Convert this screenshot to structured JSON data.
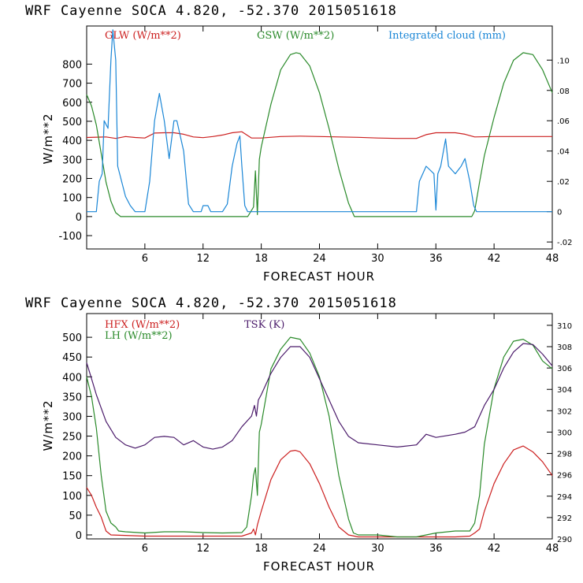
{
  "chart_data": [
    {
      "type": "line",
      "title": "WRF   Cayenne SOCA   4.820, -52.370  2015051618",
      "xlabel": "FORECAST HOUR",
      "ylabel": "W/m**2",
      "xlim": [
        0,
        48
      ],
      "ylim": [
        -170,
        1000
      ],
      "x_ticks": [
        "6",
        "12",
        "18",
        "24",
        "30",
        "36",
        "42",
        "48"
      ],
      "y_ticks": [
        "-100",
        "0",
        "100",
        "200",
        "300",
        "400",
        "500",
        "600",
        "700",
        "800"
      ],
      "y2_ticks": [
        "-.02",
        "0",
        ".02",
        ".04",
        ".06",
        ".08",
        ".10"
      ],
      "y2lim": [
        -0.0246,
        0.1225
      ],
      "series": [
        {
          "name": "GLW (W/m**2)",
          "axis": "left",
          "color": "#cc2020",
          "points": [
            [
              0,
              415
            ],
            [
              2,
              418
            ],
            [
              3,
              410
            ],
            [
              4,
              420
            ],
            [
              5,
              415
            ],
            [
              6,
              412
            ],
            [
              7,
              438
            ],
            [
              8,
              440
            ],
            [
              9,
              440
            ],
            [
              10,
              432
            ],
            [
              11,
              418
            ],
            [
              12,
              414
            ],
            [
              13,
              420
            ],
            [
              14,
              428
            ],
            [
              15,
              440
            ],
            [
              16,
              445
            ],
            [
              17,
              412
            ],
            [
              18,
              412
            ],
            [
              20,
              420
            ],
            [
              22,
              422
            ],
            [
              24,
              420
            ],
            [
              26,
              418
            ],
            [
              28,
              416
            ],
            [
              30,
              412
            ],
            [
              32,
              410
            ],
            [
              34,
              410
            ],
            [
              35,
              430
            ],
            [
              36,
              440
            ],
            [
              38,
              440
            ],
            [
              39,
              432
            ],
            [
              40,
              418
            ],
            [
              42,
              420
            ],
            [
              44,
              420
            ],
            [
              46,
              420
            ],
            [
              48,
              420
            ]
          ]
        },
        {
          "name": "GSW (W/m**2)",
          "axis": "left",
          "color": "#2a8a2a",
          "points": [
            [
              0,
              640
            ],
            [
              0.5,
              580
            ],
            [
              1,
              480
            ],
            [
              1.5,
              330
            ],
            [
              2,
              180
            ],
            [
              2.5,
              80
            ],
            [
              3,
              20
            ],
            [
              3.5,
              0
            ],
            [
              16.6,
              0
            ],
            [
              17.2,
              50
            ],
            [
              17.4,
              240
            ],
            [
              17.6,
              10
            ],
            [
              17.8,
              300
            ],
            [
              18,
              365
            ],
            [
              19,
              590
            ],
            [
              20,
              770
            ],
            [
              21,
              850
            ],
            [
              21.6,
              860
            ],
            [
              22,
              855
            ],
            [
              23,
              790
            ],
            [
              24,
              650
            ],
            [
              25,
              460
            ],
            [
              26,
              250
            ],
            [
              27,
              70
            ],
            [
              27.6,
              0
            ],
            [
              39.7,
              0
            ],
            [
              40,
              30
            ],
            [
              40.5,
              180
            ],
            [
              41,
              320
            ],
            [
              42,
              520
            ],
            [
              43,
              700
            ],
            [
              44,
              820
            ],
            [
              45,
              860
            ],
            [
              46,
              850
            ],
            [
              47,
              770
            ],
            [
              48,
              650
            ]
          ]
        },
        {
          "name": "Integrated cloud (mm)",
          "axis": "right",
          "color": "#1a86d6",
          "points": [
            [
              0,
              0
            ],
            [
              1,
              0
            ],
            [
              1.3,
              0.02
            ],
            [
              1.6,
              0.025
            ],
            [
              1.8,
              0.06
            ],
            [
              2.2,
              0.055
            ],
            [
              2.5,
              0.1
            ],
            [
              2.7,
              0.12
            ],
            [
              3,
              0.1
            ],
            [
              3.2,
              0.03
            ],
            [
              4,
              0.01
            ],
            [
              4.5,
              0.004
            ],
            [
              5,
              0
            ],
            [
              6,
              0
            ],
            [
              6.5,
              0.02
            ],
            [
              7,
              0.06
            ],
            [
              7.5,
              0.078
            ],
            [
              8,
              0.06
            ],
            [
              8.5,
              0.035
            ],
            [
              9,
              0.06
            ],
            [
              9.3,
              0.06
            ],
            [
              10,
              0.04
            ],
            [
              10.5,
              0.005
            ],
            [
              11,
              0
            ],
            [
              11.8,
              0
            ],
            [
              12,
              0.004
            ],
            [
              12.5,
              0.004
            ],
            [
              12.8,
              0
            ],
            [
              14,
              0
            ],
            [
              14.5,
              0.005
            ],
            [
              15,
              0.03
            ],
            [
              15.5,
              0.045
            ],
            [
              15.8,
              0.05
            ],
            [
              16,
              0.03
            ],
            [
              16.3,
              0.004
            ],
            [
              16.6,
              0
            ],
            [
              34,
              0
            ],
            [
              34.3,
              0.02
            ],
            [
              35,
              0.03
            ],
            [
              35.8,
              0.025
            ],
            [
              36,
              0.001
            ],
            [
              36.2,
              0.025
            ],
            [
              36.5,
              0.03
            ],
            [
              37,
              0.048
            ],
            [
              37.3,
              0.03
            ],
            [
              38,
              0.025
            ],
            [
              38.6,
              0.03
            ],
            [
              39,
              0.035
            ],
            [
              39.5,
              0.02
            ],
            [
              39.9,
              0.004
            ],
            [
              40.2,
              0
            ],
            [
              48,
              0
            ]
          ]
        }
      ]
    },
    {
      "type": "line",
      "title": "WRF   Cayenne SOCA   4.820, -52.370  2015051618",
      "xlabel": "FORECAST HOUR",
      "ylabel": "W/m**2",
      "xlim": [
        0,
        48
      ],
      "ylim": [
        -10,
        560
      ],
      "x_ticks": [
        "6",
        "12",
        "18",
        "24",
        "30",
        "36",
        "42",
        "48"
      ],
      "y_ticks": [
        "0",
        "50",
        "100",
        "150",
        "200",
        "250",
        "300",
        "350",
        "400",
        "450",
        "500"
      ],
      "y2_ticks": [
        "290",
        "292",
        "294",
        "296",
        "298",
        "300",
        "302",
        "304",
        "306",
        "308",
        "310"
      ],
      "y2lim": [
        290,
        311.1
      ],
      "series": [
        {
          "name": "HFX (W/m**2)",
          "axis": "left",
          "color": "#cc2020",
          "points": [
            [
              0,
              120
            ],
            [
              0.5,
              100
            ],
            [
              1,
              70
            ],
            [
              1.5,
              45
            ],
            [
              2,
              10
            ],
            [
              2.5,
              0
            ],
            [
              6,
              -3
            ],
            [
              12,
              -3
            ],
            [
              16,
              -3
            ],
            [
              17,
              5
            ],
            [
              17.2,
              15
            ],
            [
              17.4,
              0
            ],
            [
              17.6,
              25
            ],
            [
              18,
              60
            ],
            [
              19,
              140
            ],
            [
              20,
              190
            ],
            [
              21,
              212
            ],
            [
              21.5,
              214
            ],
            [
              22,
              210
            ],
            [
              23,
              180
            ],
            [
              24,
              130
            ],
            [
              25,
              70
            ],
            [
              26,
              20
            ],
            [
              27,
              0
            ],
            [
              28,
              -5
            ],
            [
              34,
              -5
            ],
            [
              38,
              -5
            ],
            [
              39.5,
              -3
            ],
            [
              40,
              5
            ],
            [
              40.5,
              15
            ],
            [
              41,
              60
            ],
            [
              42,
              130
            ],
            [
              43,
              180
            ],
            [
              44,
              215
            ],
            [
              45,
              225
            ],
            [
              46,
              210
            ],
            [
              47,
              185
            ],
            [
              48,
              150
            ]
          ]
        },
        {
          "name": "LH (W/m**2)",
          "axis": "left",
          "color": "#2a8a2a",
          "points": [
            [
              0,
              400
            ],
            [
              0.5,
              350
            ],
            [
              1,
              270
            ],
            [
              1.5,
              150
            ],
            [
              2,
              60
            ],
            [
              2.5,
              30
            ],
            [
              3,
              20
            ],
            [
              3.3,
              10
            ],
            [
              4,
              8
            ],
            [
              6,
              5
            ],
            [
              8,
              8
            ],
            [
              10,
              8
            ],
            [
              12,
              6
            ],
            [
              14,
              5
            ],
            [
              16,
              6
            ],
            [
              16.5,
              20
            ],
            [
              17,
              100
            ],
            [
              17.2,
              150
            ],
            [
              17.4,
              170
            ],
            [
              17.6,
              100
            ],
            [
              17.8,
              260
            ],
            [
              18,
              280
            ],
            [
              19,
              420
            ],
            [
              20,
              470
            ],
            [
              21,
              500
            ],
            [
              22,
              495
            ],
            [
              23,
              460
            ],
            [
              24,
              400
            ],
            [
              25,
              300
            ],
            [
              26,
              150
            ],
            [
              27,
              40
            ],
            [
              27.5,
              5
            ],
            [
              28,
              0
            ],
            [
              30,
              0
            ],
            [
              32,
              -5
            ],
            [
              34,
              -5
            ],
            [
              36,
              5
            ],
            [
              38,
              10
            ],
            [
              39.5,
              10
            ],
            [
              40,
              30
            ],
            [
              40.5,
              100
            ],
            [
              41,
              230
            ],
            [
              42,
              370
            ],
            [
              43,
              450
            ],
            [
              44,
              490
            ],
            [
              45,
              495
            ],
            [
              46,
              480
            ],
            [
              47,
              440
            ],
            [
              48,
              420
            ]
          ]
        },
        {
          "name": "TSK (K)",
          "axis": "right",
          "color": "#4a1a6a",
          "points": [
            [
              0,
              306.5
            ],
            [
              0.5,
              305
            ],
            [
              1,
              303.5
            ],
            [
              2,
              301
            ],
            [
              3,
              299.5
            ],
            [
              4,
              298.8
            ],
            [
              5,
              298.5
            ],
            [
              6,
              298.8
            ],
            [
              7,
              299.5
            ],
            [
              8,
              299.6
            ],
            [
              9,
              299.5
            ],
            [
              10,
              298.8
            ],
            [
              11,
              299.2
            ],
            [
              12,
              298.6
            ],
            [
              13,
              298.4
            ],
            [
              14,
              298.6
            ],
            [
              15,
              299.2
            ],
            [
              16,
              300.5
            ],
            [
              17,
              301.5
            ],
            [
              17.3,
              302.5
            ],
            [
              17.5,
              301.5
            ],
            [
              17.7,
              303
            ],
            [
              18,
              303.5
            ],
            [
              19,
              305.5
            ],
            [
              20,
              307
            ],
            [
              21,
              308
            ],
            [
              22,
              308
            ],
            [
              23,
              307
            ],
            [
              24,
              305
            ],
            [
              25,
              303
            ],
            [
              26,
              301
            ],
            [
              27,
              299.6
            ],
            [
              28,
              299
            ],
            [
              30,
              298.8
            ],
            [
              32,
              298.6
            ],
            [
              34,
              298.8
            ],
            [
              35,
              299.8
            ],
            [
              36,
              299.5
            ],
            [
              38,
              299.8
            ],
            [
              39,
              300
            ],
            [
              40,
              300.5
            ],
            [
              40.5,
              301.5
            ],
            [
              41,
              302.5
            ],
            [
              42,
              304
            ],
            [
              43,
              306
            ],
            [
              44,
              307.5
            ],
            [
              45,
              308.3
            ],
            [
              46,
              308.2
            ],
            [
              47,
              307.3
            ],
            [
              48,
              306.2
            ]
          ]
        }
      ]
    }
  ]
}
